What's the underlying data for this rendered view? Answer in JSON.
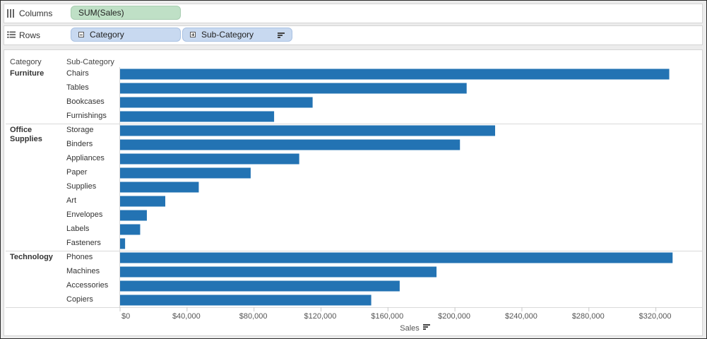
{
  "columns_shelf": {
    "label": "Columns",
    "pill": "SUM(Sales)"
  },
  "rows_shelf": {
    "label": "Rows",
    "pills": [
      "Category",
      "Sub-Category"
    ]
  },
  "headers": {
    "category": "Category",
    "sub_category": "Sub-Category"
  },
  "colors": {
    "bar": "#2373b3"
  },
  "chart_data": {
    "type": "bar",
    "orientation": "horizontal",
    "xlabel": "Sales",
    "xlim": [
      0,
      340000
    ],
    "ticks": [
      "$0",
      "$40,000",
      "$80,000",
      "$120,000",
      "$160,000",
      "$200,000",
      "$240,000",
      "$280,000",
      "$320,000"
    ],
    "groups": [
      {
        "category": "Furniture",
        "items": [
          {
            "sub": "Chairs",
            "value": 328000
          },
          {
            "sub": "Tables",
            "value": 207000
          },
          {
            "sub": "Bookcases",
            "value": 115000
          },
          {
            "sub": "Furnishings",
            "value": 92000
          }
        ]
      },
      {
        "category": "Office Supplies",
        "items": [
          {
            "sub": "Storage",
            "value": 224000
          },
          {
            "sub": "Binders",
            "value": 203000
          },
          {
            "sub": "Appliances",
            "value": 107000
          },
          {
            "sub": "Paper",
            "value": 78000
          },
          {
            "sub": "Supplies",
            "value": 47000
          },
          {
            "sub": "Art",
            "value": 27000
          },
          {
            "sub": "Envelopes",
            "value": 16000
          },
          {
            "sub": "Labels",
            "value": 12000
          },
          {
            "sub": "Fasteners",
            "value": 3000
          }
        ]
      },
      {
        "category": "Technology",
        "items": [
          {
            "sub": "Phones",
            "value": 330000
          },
          {
            "sub": "Machines",
            "value": 189000
          },
          {
            "sub": "Accessories",
            "value": 167000
          },
          {
            "sub": "Copiers",
            "value": 150000
          }
        ]
      }
    ]
  }
}
